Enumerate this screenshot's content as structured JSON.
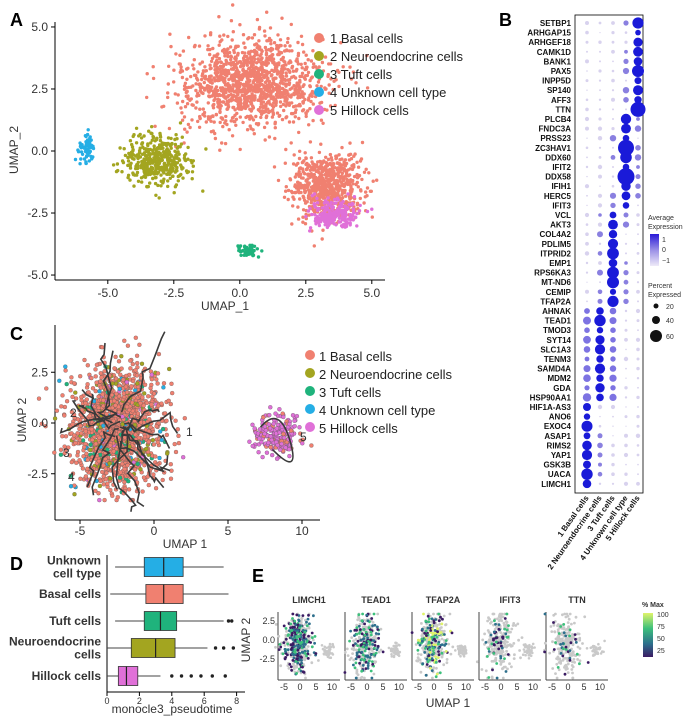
{
  "panel_labels": {
    "A": "A",
    "B": "B",
    "C": "C",
    "D": "D",
    "E": "E"
  },
  "colors": {
    "basal": "#f08070",
    "neuro": "#a3a520",
    "tuft": "#1fb37c",
    "unknown": "#25aee5",
    "hillock": "#e070d8",
    "dot_hi": "#1a1ad8",
    "dot_lo": "#d8d2ee"
  },
  "chart_data": [
    {
      "id": "A",
      "type": "scatter",
      "xlabel": "UMAP_1",
      "ylabel": "UMAP_2",
      "xlim": [
        -7,
        5.5
      ],
      "ylim": [
        -5.2,
        5.2
      ],
      "xticks": [
        "-5.0",
        "-2.5",
        "0.0",
        "2.5",
        "5.0"
      ],
      "yticks": [
        "5.0",
        "2.5",
        "0.0",
        "-2.5",
        "-5.0"
      ],
      "legend": [
        "1 Basal cells",
        "2 Neuroendocrine cells",
        "3 Tuft cells",
        "4 Unknown cell type",
        "5 Hillock cells"
      ],
      "clusters": [
        {
          "name": "1 Basal cells",
          "cx": 0.5,
          "cy": 2.7,
          "sx": 2.6,
          "sy": 1.5
        },
        {
          "name": "1 Basal cells",
          "cx": 3.3,
          "cy": -1.4,
          "sx": 1.3,
          "sy": 1.3
        },
        {
          "name": "2 Neuroendocrine cells",
          "cx": -3.2,
          "cy": -0.4,
          "sx": 1.2,
          "sy": 1.0
        },
        {
          "name": "3 Tuft cells",
          "cx": 0.3,
          "cy": -4.0,
          "sx": 0.4,
          "sy": 0.25
        },
        {
          "name": "4 Unknown cell type",
          "cx": -5.8,
          "cy": 0.1,
          "sx": 0.3,
          "sy": 0.6
        },
        {
          "name": "5 Hillock cells",
          "cx": 3.6,
          "cy": -2.6,
          "sx": 0.9,
          "sy": 0.6
        }
      ]
    },
    {
      "id": "B",
      "type": "dotplot",
      "genes": [
        "SETBP1",
        "ARHGAP15",
        "ARHGEF18",
        "CAMK1D",
        "BANK1",
        "PAX5",
        "INPP5D",
        "SP140",
        "AFF3",
        "TTN",
        "PLCB4",
        "FNDC3A",
        "PRSS23",
        "ZC3HAV1",
        "DDX60",
        "IFIT2",
        "DDX58",
        "IFIH1",
        "HERC5",
        "IFIT3",
        "VCL",
        "AKT3",
        "COL4A2",
        "PDLIM5",
        "ITPRID2",
        "EMP1",
        "RPS6KA3",
        "MT-ND6",
        "CEMIP",
        "TFAP2A",
        "AHNAK",
        "TEAD1",
        "TMOD3",
        "SYT14",
        "SLC1A3",
        "TENM3",
        "SAMD4A",
        "MDM2",
        "GDA",
        "HSP90AA1",
        "HIF1A-AS3",
        "ANO6",
        "EXOC4",
        "ASAP1",
        "RIMS2",
        "YAP1",
        "GSK3B",
        "UACA",
        "LIMCH1"
      ],
      "groups": [
        "1 Basal cells",
        "2 Neuroendocrine cells",
        "3 Tuft cells",
        "4 Unknown cell type",
        "5 Hillock cells"
      ],
      "legend_expr_title": "Average Expression",
      "legend_expr_ticks": [
        "1",
        "0",
        "−1"
      ],
      "legend_pct_title": "Percent Expressed",
      "legend_pct_values": [
        "20",
        "40",
        "60"
      ]
    },
    {
      "id": "C",
      "type": "scatter",
      "xlabel": "UMAP 1",
      "ylabel": "UMAP 2",
      "xticks": [
        "-5",
        "0",
        "5",
        "10"
      ],
      "yticks": [
        "2.5",
        "0.0",
        "-2.5"
      ],
      "legend": [
        "1 Basal cells",
        "2 Neuroendocrine cells",
        "3 Tuft cells",
        "4 Unknown cell type",
        "5 Hillock cells"
      ],
      "trajectory_labels": [
        "1",
        "2",
        "3",
        "4",
        "5"
      ]
    },
    {
      "id": "D",
      "type": "box",
      "xlabel": "monocle3_pseudotime",
      "xticks": [
        "0",
        "2",
        "4",
        "6",
        "8"
      ],
      "xlim": [
        0,
        8
      ],
      "series": [
        {
          "name": "Unknown cell type",
          "q1": 2.3,
          "median": 3.5,
          "q3": 4.7,
          "whisker_low": 0.5,
          "whisker_high": 7.2,
          "outliers": []
        },
        {
          "name": "Basal cells",
          "q1": 2.4,
          "median": 3.5,
          "q3": 4.7,
          "whisker_low": 0.2,
          "whisker_high": 7.5,
          "outliers": []
        },
        {
          "name": "Tuft cells",
          "q1": 2.3,
          "median": 3.3,
          "q3": 4.3,
          "whisker_low": 0.5,
          "whisker_high": 7.2,
          "outliers": [
            7.5,
            7.7
          ]
        },
        {
          "name": "Neuroendocrine cells",
          "q1": 1.5,
          "median": 3.0,
          "q3": 4.2,
          "whisker_low": 0.0,
          "whisker_high": 6.2,
          "outliers": [
            6.7,
            7.2,
            7.8
          ]
        },
        {
          "name": "Hillock cells",
          "q1": 0.7,
          "median": 1.2,
          "q3": 1.9,
          "whisker_low": 0.0,
          "whisker_high": 3.3,
          "outliers": [
            4.0,
            4.6,
            5.2,
            5.8,
            6.5,
            7.3
          ]
        }
      ],
      "category_labels": [
        [
          "Unknown",
          "cell type"
        ],
        [
          "Basal cells"
        ],
        [
          "Tuft cells"
        ],
        [
          "Neuroendocrine",
          "cells"
        ],
        [
          "Hillock cells"
        ]
      ]
    },
    {
      "id": "E",
      "type": "scatter-facets",
      "facets": [
        "LIMCH1",
        "TEAD1",
        "TFAP2A",
        "IFIT3",
        "TTN"
      ],
      "xlabel": "UMAP 1",
      "ylabel": "UMAP 2",
      "xticks": [
        "-5",
        "0",
        "5",
        "10"
      ],
      "yticks": [
        "2.5",
        "0.0",
        "-2.5"
      ],
      "legend_title": "% Max",
      "legend_ticks": [
        "100",
        "75",
        "50",
        "25"
      ]
    }
  ]
}
